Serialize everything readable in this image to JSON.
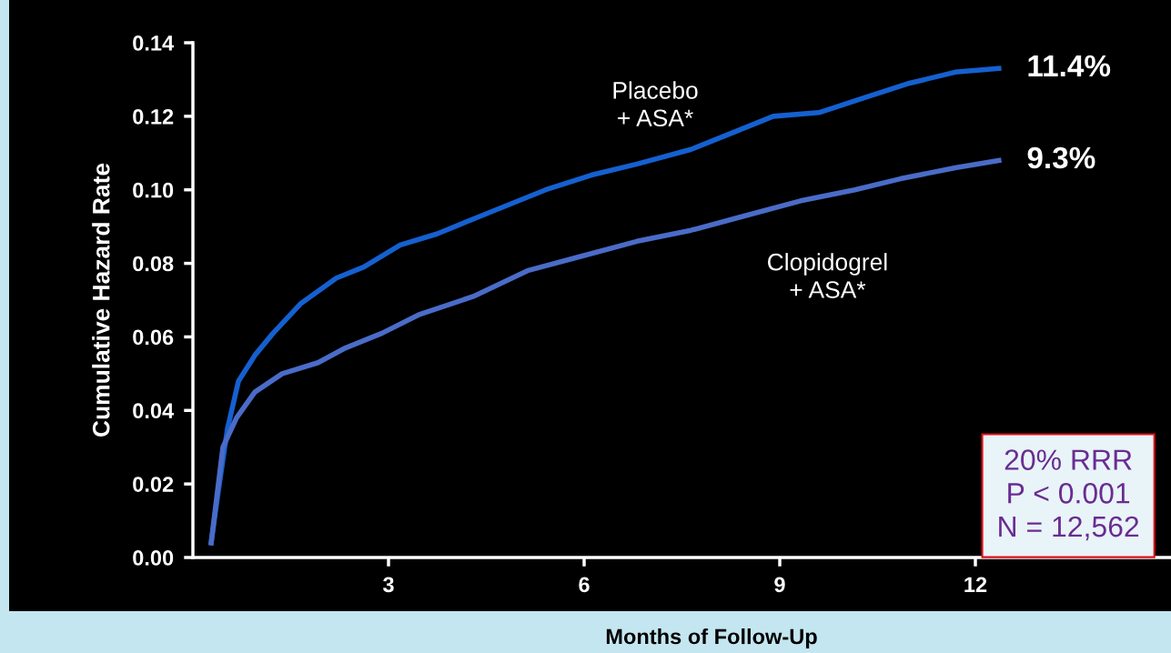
{
  "chart_data": {
    "type": "line",
    "xlabel": "Months of Follow-Up",
    "ylabel": "Cumulative Hazard Rate",
    "xlim": [
      0,
      15
    ],
    "ylim": [
      0,
      0.14
    ],
    "xticks": [
      3,
      6,
      9,
      12
    ],
    "yticks": [
      {
        "value": 0,
        "label": "0.00"
      },
      {
        "value": 0.02,
        "label": "0.02"
      },
      {
        "value": 0.04,
        "label": "0.04"
      },
      {
        "value": 0.06,
        "label": "0.06"
      },
      {
        "value": 0.08,
        "label": "0.08"
      },
      {
        "value": 0.1,
        "label": "0.10"
      },
      {
        "value": 0.12,
        "label": "0.12"
      },
      {
        "value": 0.14,
        "label": "0.14"
      }
    ],
    "grid": false,
    "legend": false,
    "marker": "none",
    "line_style": "solid",
    "series": [
      {
        "name": "Placebo\n+ ASA*",
        "color": "#1560d0",
        "x": [
          0.28,
          0.39,
          0.53,
          0.7,
          0.95,
          1.23,
          1.65,
          2.2,
          2.62,
          3.18,
          3.74,
          4.57,
          5.41,
          6.11,
          6.81,
          7.64,
          8.2,
          8.9,
          9.6,
          10.29,
          10.99,
          11.69,
          12.36
        ],
        "values": [
          0.004,
          0.018,
          0.035,
          0.048,
          0.055,
          0.061,
          0.069,
          0.076,
          0.079,
          0.085,
          0.088,
          0.094,
          0.1,
          0.104,
          0.107,
          0.111,
          0.115,
          0.12,
          0.121,
          0.125,
          0.129,
          0.132,
          0.133
        ]
      },
      {
        "name": "Clopidogrel\n+ ASA*",
        "color": "#4a6cc8",
        "x": [
          0.28,
          0.46,
          0.67,
          0.95,
          1.37,
          1.92,
          2.34,
          2.9,
          3.46,
          4.3,
          5.13,
          5.97,
          6.81,
          7.64,
          8.48,
          9.32,
          10.15,
          10.85,
          11.69,
          12.36
        ],
        "values": [
          0.004,
          0.03,
          0.038,
          0.045,
          0.05,
          0.053,
          0.057,
          0.061,
          0.066,
          0.071,
          0.078,
          0.082,
          0.086,
          0.089,
          0.093,
          0.097,
          0.1,
          0.103,
          0.106,
          0.108
        ]
      }
    ],
    "annotations": [
      {
        "text": "11.4%",
        "x": 12.36,
        "y": 0.133
      },
      {
        "text": "9.3%",
        "x": 12.36,
        "y": 0.108
      },
      "20% RRR\nP < 0.001\nN = 12,562"
    ]
  }
}
